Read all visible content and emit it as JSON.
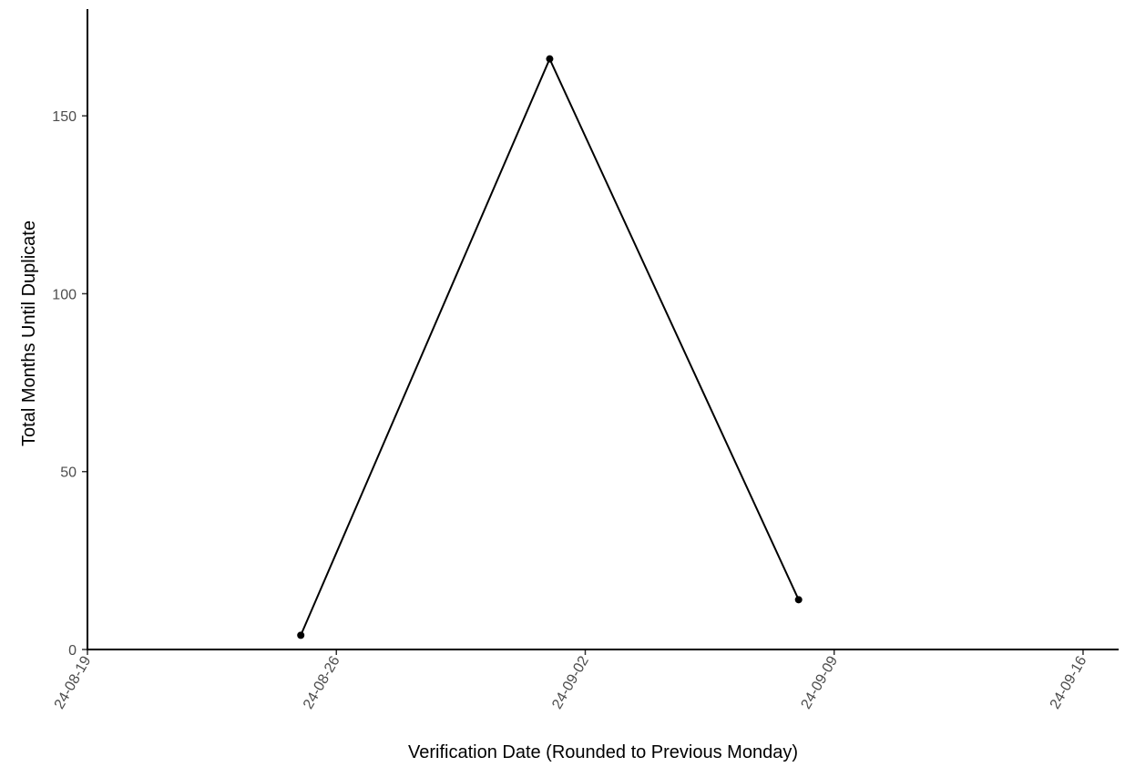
{
  "chart_data": {
    "type": "line",
    "title": "",
    "xlabel": "Verification Date (Rounded to Previous Monday)",
    "ylabel": "Total Months Until Duplicate",
    "x_type": "date",
    "xlim": [
      "2024-08-19",
      "2024-09-17"
    ],
    "ylim": [
      0,
      180
    ],
    "x_ticks": [
      "2024-08-19",
      "2024-08-26",
      "2024-09-02",
      "2024-09-09",
      "2024-09-16"
    ],
    "x_tick_labels": [
      "24-08-19",
      "24-08-26",
      "24-09-02",
      "24-09-09",
      "24-09-16"
    ],
    "y_ticks": [
      0,
      50,
      100,
      150
    ],
    "y_tick_labels": [
      "0",
      "50",
      "100",
      "150"
    ],
    "grid": false,
    "series": [
      {
        "x": [
          "2024-08-25",
          "2024-09-01",
          "2024-09-08"
        ],
        "y": [
          4,
          166,
          14
        ],
        "color": "#000000"
      }
    ]
  }
}
